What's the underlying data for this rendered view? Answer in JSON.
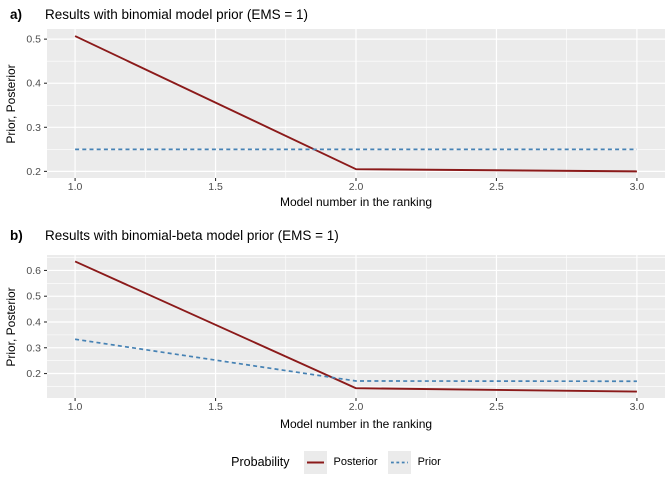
{
  "colors": {
    "posterior": "#8B1A1A",
    "prior": "#4682B4",
    "panel_bg": "#EBEBEB",
    "grid": "#FFFFFF",
    "tick_label": "#4D4D4D",
    "tick_mark": "#333333"
  },
  "legend": {
    "title": "Probability",
    "entries": [
      {
        "label": "Posterior",
        "line_style": "solid",
        "color_key": "posterior"
      },
      {
        "label": "Prior",
        "line_style": "dashed",
        "color_key": "prior"
      }
    ]
  },
  "chart_data": [
    {
      "tag": "a)",
      "type": "line",
      "title": "Results with binomial model prior (EMS = 1)",
      "xlabel": "Model number in the ranking",
      "ylabel": "Prior, Posterior",
      "x": [
        1,
        2,
        3
      ],
      "series": [
        {
          "name": "Posterior",
          "values": [
            0.507,
            0.205,
            0.2
          ],
          "style": "solid",
          "color_key": "posterior"
        },
        {
          "name": "Prior",
          "values": [
            0.25,
            0.25,
            0.25
          ],
          "style": "dashed",
          "color_key": "prior"
        }
      ],
      "xlim": [
        0.9,
        3.1
      ],
      "ylim": [
        0.185,
        0.523
      ],
      "x_ticks": [
        1.0,
        1.5,
        2.0,
        2.5,
        3.0
      ],
      "x_tick_labels": [
        "1.0",
        "1.5",
        "2.0",
        "2.5",
        "3.0"
      ],
      "x_minor": [
        1.25,
        1.75,
        2.25,
        2.75
      ],
      "y_ticks": [
        0.2,
        0.3,
        0.4,
        0.5
      ],
      "y_tick_labels": [
        "0.2",
        "0.3",
        "0.4",
        "0.5"
      ],
      "y_minor": [
        0.25,
        0.35,
        0.45
      ],
      "grid": true,
      "legend_position": "bottom"
    },
    {
      "tag": "b)",
      "type": "line",
      "title": "Results with binomial-beta model prior (EMS = 1)",
      "xlabel": "Model number in the ranking",
      "ylabel": "Prior, Posterior",
      "x": [
        1,
        2,
        3
      ],
      "series": [
        {
          "name": "Posterior",
          "values": [
            0.635,
            0.143,
            0.13
          ],
          "style": "solid",
          "color_key": "posterior"
        },
        {
          "name": "Prior",
          "values": [
            0.333,
            0.171,
            0.17
          ],
          "style": "dashed",
          "color_key": "prior"
        }
      ],
      "xlim": [
        0.9,
        3.1
      ],
      "ylim": [
        0.105,
        0.66
      ],
      "x_ticks": [
        1.0,
        1.5,
        2.0,
        2.5,
        3.0
      ],
      "x_tick_labels": [
        "1.0",
        "1.5",
        "2.0",
        "2.5",
        "3.0"
      ],
      "x_minor": [
        1.25,
        1.75,
        2.25,
        2.75
      ],
      "y_ticks": [
        0.2,
        0.3,
        0.4,
        0.5,
        0.6
      ],
      "y_tick_labels": [
        "0.2",
        "0.3",
        "0.4",
        "0.5",
        "0.6"
      ],
      "y_minor": [
        0.15,
        0.25,
        0.35,
        0.45,
        0.55,
        0.65
      ],
      "grid": true,
      "legend_position": "bottom"
    }
  ]
}
